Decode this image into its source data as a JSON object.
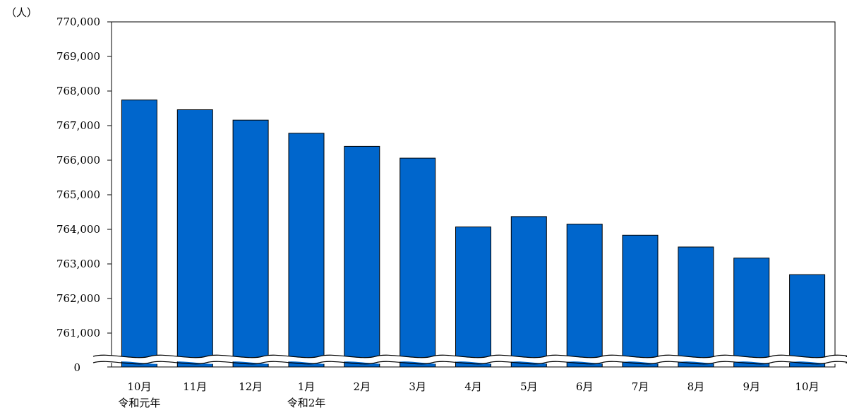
{
  "chart_data": {
    "type": "bar",
    "unit_label": "（人）",
    "categories": [
      "10月",
      "11月",
      "12月",
      "1月",
      "2月",
      "3月",
      "4月",
      "5月",
      "6月",
      "7月",
      "8月",
      "9月",
      "10月"
    ],
    "sub_labels": [
      "令和元年",
      "",
      "",
      "令和2年",
      "",
      "",
      "",
      "",
      "",
      "",
      "",
      "",
      ""
    ],
    "values": [
      767740,
      767460,
      767160,
      766780,
      766400,
      766060,
      764070,
      764370,
      764150,
      763830,
      763490,
      763170,
      762690
    ],
    "yticks": [
      "770,000",
      "769,000",
      "768,000",
      "767,000",
      "766,000",
      "765,000",
      "764,000",
      "763,000",
      "762,000",
      "761,000"
    ],
    "ylim": [
      761000,
      770000
    ],
    "axis_break": true,
    "zero_label": "0",
    "bar_color": "#0066CC",
    "grid": false
  }
}
